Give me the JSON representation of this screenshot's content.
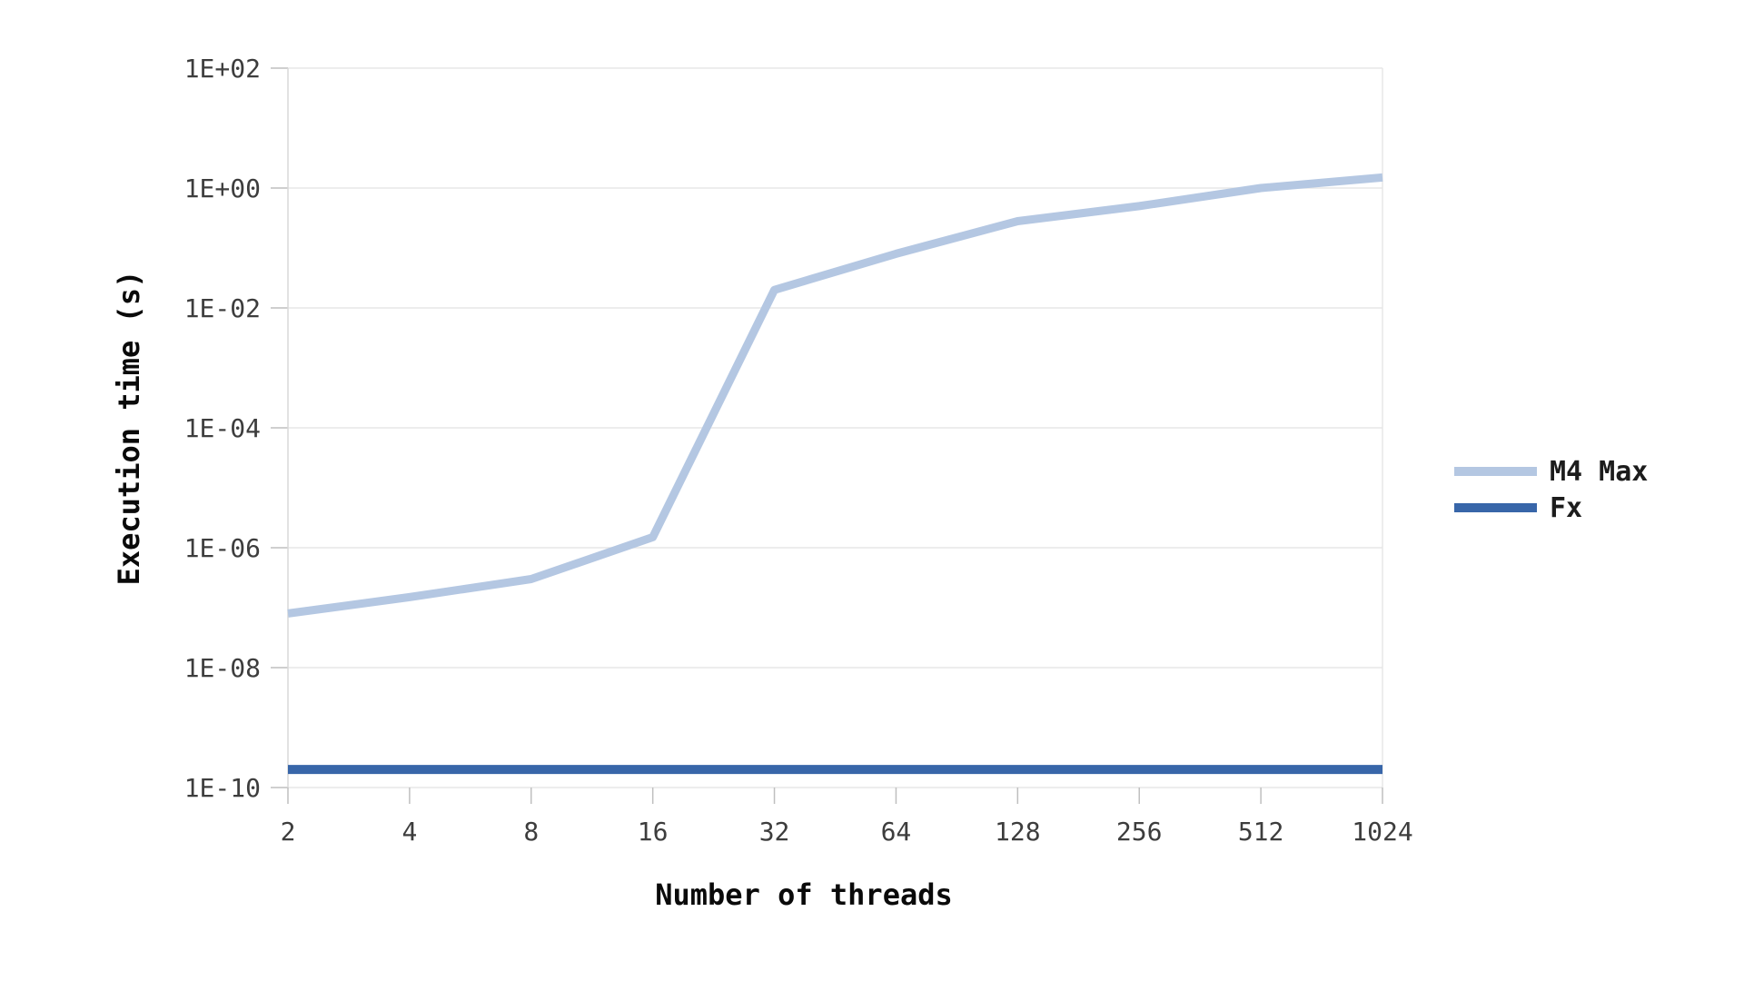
{
  "chart_data": {
    "type": "line",
    "title": "",
    "xlabel": "Number of threads",
    "ylabel": "Execution time (s)",
    "x_scale": "log2-categorical",
    "y_scale": "log10",
    "ylim": [
      1e-10,
      100.0
    ],
    "grid": "horizontal",
    "legend_position": "right",
    "categories": [
      2,
      4,
      8,
      16,
      32,
      64,
      128,
      256,
      512,
      1024
    ],
    "y_tick_labels": [
      "1E+02",
      "1E+00",
      "1E-02",
      "1E-04",
      "1E-06",
      "1E-08",
      "1E-10"
    ],
    "y_tick_values": [
      100.0,
      1.0,
      0.01,
      0.0001,
      1e-06,
      1e-08,
      1e-10
    ],
    "series": [
      {
        "name": "M4 Max",
        "color": "#b4c7e2",
        "values": [
          8e-08,
          1.5e-07,
          3e-07,
          1.5e-06,
          0.02,
          0.08,
          0.28,
          0.5,
          1.0,
          1.5
        ]
      },
      {
        "name": "Fx",
        "color": "#3866a9",
        "values": [
          2e-10,
          2e-10,
          2e-10,
          2e-10,
          2e-10,
          2e-10,
          2e-10,
          2e-10,
          2e-10,
          2e-10
        ]
      }
    ],
    "colors": {
      "gridline": "#e7e7e7",
      "axis_line": "#d9d9d9",
      "tick_mark": "#bfbfbf",
      "tick_label": "#3d3d3d",
      "title_text": "#0a0a0a"
    }
  }
}
